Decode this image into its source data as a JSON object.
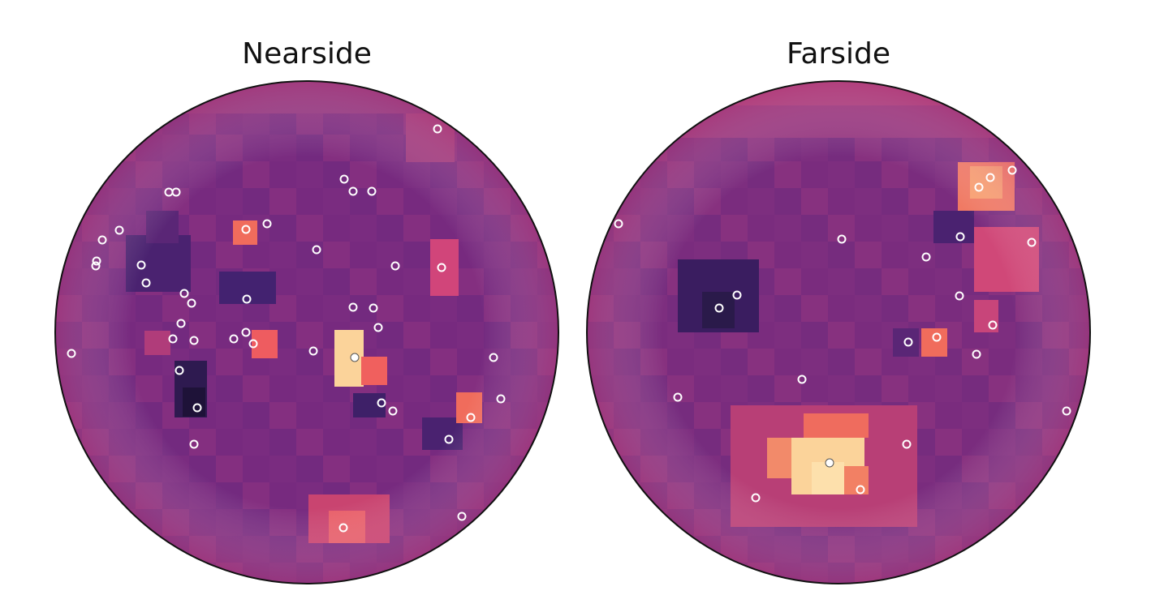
{
  "panels": [
    {
      "title": "Nearside"
    },
    {
      "title": "Farside"
    }
  ]
}
